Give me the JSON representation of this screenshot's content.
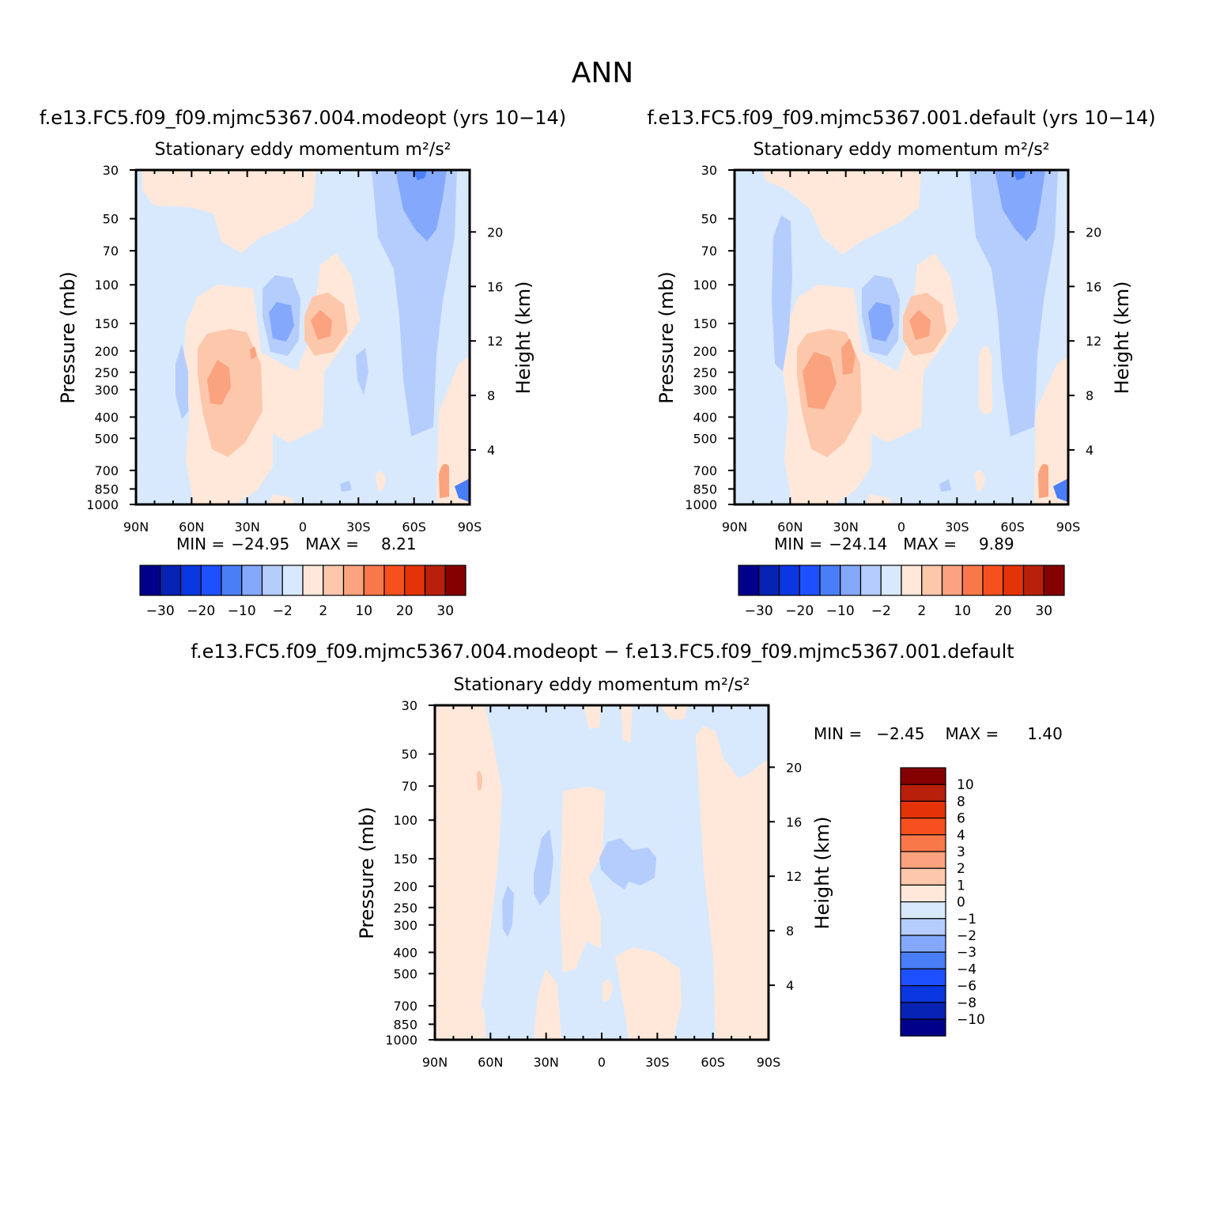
{
  "page_title": "ANN",
  "chart_data": [
    {
      "type": "contour",
      "case_title": "f.e13.FC5.f09_f09.mjmc5367.004.modeopt (yrs 10−14)",
      "title": "Stationary eddy momentum",
      "units": "m²/s²",
      "ylabel": "Pressure (mb)",
      "y2label": "Height (km)",
      "x_ticks": [
        "90N",
        "60N",
        "30N",
        "0",
        "30S",
        "60S",
        "90S"
      ],
      "pressure_ticks": [
        30,
        50,
        70,
        100,
        150,
        200,
        250,
        300,
        400,
        500,
        700,
        850,
        1000
      ],
      "height_ticks": [
        20,
        16,
        12,
        8,
        4
      ],
      "min_label": "MIN =",
      "min_value": "−24.95",
      "max_label": "MAX =",
      "max_value": "8.21",
      "colorbar_labels": [
        "−30",
        "−20",
        "−10",
        "−2",
        "2",
        "10",
        "20",
        "30"
      ]
    },
    {
      "type": "contour",
      "case_title": "f.e13.FC5.f09_f09.mjmc5367.001.default (yrs 10−14)",
      "title": "Stationary eddy momentum",
      "units": "m²/s²",
      "ylabel": "Pressure (mb)",
      "y2label": "Height (km)",
      "x_ticks": [
        "90N",
        "60N",
        "30N",
        "0",
        "30S",
        "60S",
        "90S"
      ],
      "pressure_ticks": [
        30,
        50,
        70,
        100,
        150,
        200,
        250,
        300,
        400,
        500,
        700,
        850,
        1000
      ],
      "height_ticks": [
        20,
        16,
        12,
        8,
        4
      ],
      "min_label": "MIN =",
      "min_value": "−24.14",
      "max_label": "MAX =",
      "max_value": "9.89",
      "colorbar_labels": [
        "−30",
        "−20",
        "−10",
        "−2",
        "2",
        "10",
        "20",
        "30"
      ]
    },
    {
      "type": "contour",
      "case_title": "f.e13.FC5.f09_f09.mjmc5367.004.modeopt − f.e13.FC5.f09_f09.mjmc5367.001.default",
      "title": "Stationary eddy momentum",
      "units": "m²/s²",
      "ylabel": "Pressure (mb)",
      "y2label": "Height (km)",
      "x_ticks": [
        "90N",
        "60N",
        "30N",
        "0",
        "30S",
        "60S",
        "90S"
      ],
      "pressure_ticks": [
        30,
        50,
        70,
        100,
        150,
        200,
        250,
        300,
        400,
        500,
        700,
        850,
        1000
      ],
      "height_ticks": [
        20,
        16,
        12,
        8,
        4
      ],
      "min_label": "MIN =",
      "min_value": "−2.45",
      "max_label": "MAX =",
      "max_value": "1.40",
      "colorbar_labels": [
        "10",
        "8",
        "6",
        "4",
        "3",
        "2",
        "1",
        "0",
        "−1",
        "−2",
        "−3",
        "−4",
        "−6",
        "−8",
        "−10"
      ]
    }
  ],
  "colors": {
    "scale": [
      "#00008a",
      "#0623b4",
      "#0b37e0",
      "#1e50ff",
      "#4a7ef6",
      "#84a8fb",
      "#b4cdfd",
      "#d8e9fd",
      "#ffe8d9",
      "#fdc7ac",
      "#fba27e",
      "#f87849",
      "#f6501e",
      "#e43209",
      "#b8200b",
      "#850000"
    ]
  }
}
